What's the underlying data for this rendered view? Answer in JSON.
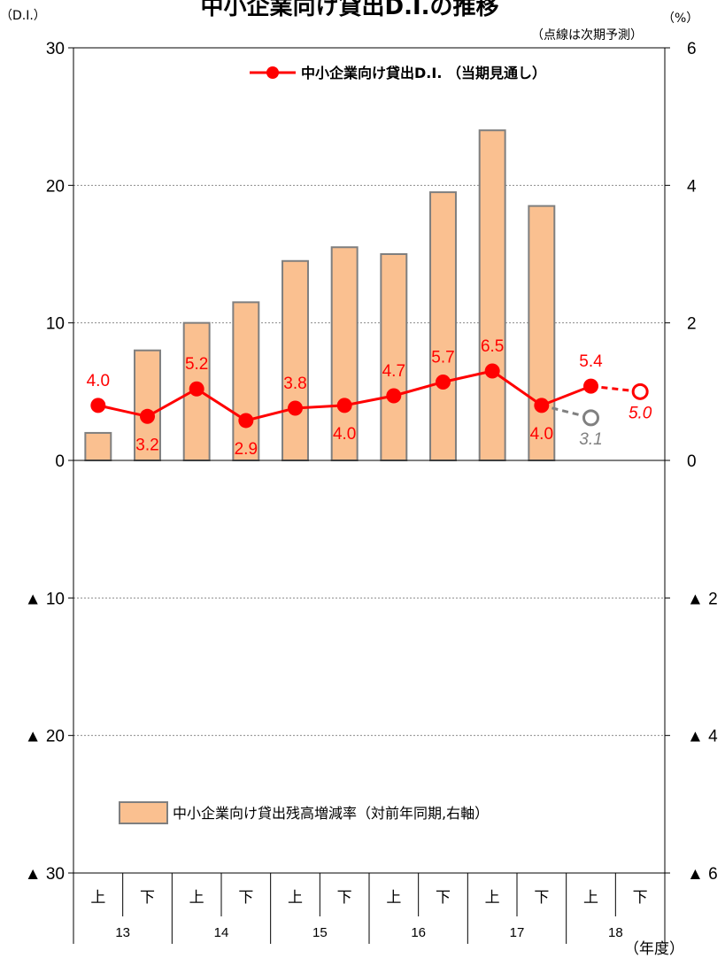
{
  "chart_data": {
    "type": "bar+line",
    "title": "中小企業向け貸出D.I.の推移",
    "note": "（点線は次期予測）",
    "y_left": {
      "unit_label": "（D.I.）",
      "ylim": [
        -30,
        30
      ],
      "ticks": [
        {
          "v": 30,
          "label": "30"
        },
        {
          "v": 20,
          "label": "20"
        },
        {
          "v": 10,
          "label": "10"
        },
        {
          "v": 0,
          "label": "0"
        },
        {
          "v": -10,
          "label": "▲ 10"
        },
        {
          "v": -20,
          "label": "▲ 20"
        },
        {
          "v": -30,
          "label": "▲ 30"
        }
      ]
    },
    "y_right": {
      "unit_label": "（%）",
      "ylim": [
        -6,
        6
      ],
      "ticks": [
        {
          "v": 6,
          "label": "6"
        },
        {
          "v": 4,
          "label": "4"
        },
        {
          "v": 2,
          "label": "2"
        },
        {
          "v": 0,
          "label": "0"
        },
        {
          "v": -2,
          "label": "▲ 2"
        },
        {
          "v": -4,
          "label": "▲ 4"
        },
        {
          "v": -6,
          "label": "▲ 6"
        }
      ]
    },
    "categories": [
      "上",
      "下",
      "上",
      "下",
      "上",
      "下",
      "上",
      "下",
      "上",
      "下",
      "上",
      "下"
    ],
    "years": [
      "13",
      "14",
      "15",
      "16",
      "17",
      "18"
    ],
    "x_unit_label": "（年度）",
    "grid": true,
    "bar_series": {
      "name": "中小企業向け貸出残高増減率（対前年同期,右軸）",
      "axis": "right",
      "values": [
        0.4,
        1.6,
        2.0,
        2.3,
        2.9,
        3.1,
        3.0,
        3.9,
        4.8,
        3.7,
        null,
        null
      ],
      "fill": "#FAC090",
      "stroke": "#7F7F7F"
    },
    "line_series": {
      "name": "中小企業向け貸出D.I. （当期見通し）",
      "axis": "left",
      "values": [
        4.0,
        3.2,
        5.2,
        2.9,
        3.8,
        4.0,
        4.7,
        5.7,
        6.5,
        4.0,
        5.4,
        null
      ],
      "labels": [
        "4.0",
        "3.2",
        "5.2",
        "2.9",
        "3.8",
        "4.0",
        "4.7",
        "5.7",
        "6.5",
        "4.0",
        "5.4",
        ""
      ],
      "label_pos": [
        "above",
        "below",
        "above",
        "below",
        "above",
        "below",
        "above",
        "above",
        "above",
        "below",
        "above",
        ""
      ],
      "color": "#FF0000"
    },
    "forecast_series": [
      {
        "from_index": 10,
        "to_index": 11,
        "from_value": 5.4,
        "to_value": 5.0,
        "label": "5.0",
        "color": "#FF0000"
      },
      {
        "from_index": 9,
        "to_index": 10,
        "from_value": 4.0,
        "to_value": 3.1,
        "label": "3.1",
        "color": "#808080"
      }
    ],
    "legend_line_position": "top-center",
    "legend_bar_position": "bottom-left"
  }
}
